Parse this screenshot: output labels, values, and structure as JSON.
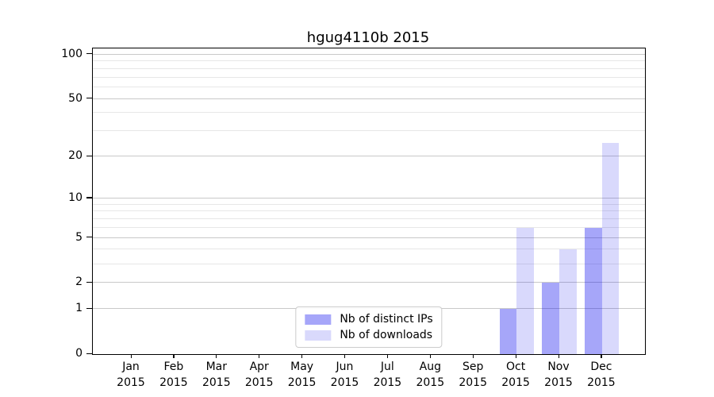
{
  "title": "hgug4110b 2015",
  "chart_data": {
    "type": "bar",
    "title": "hgug4110b 2015",
    "categories": [
      "Jan",
      "Feb",
      "Mar",
      "Apr",
      "May",
      "Jun",
      "Jul",
      "Aug",
      "Sep",
      "Oct",
      "Nov",
      "Dec"
    ],
    "x_year_label": "2015",
    "series": [
      {
        "name": "Nb of distinct IPs",
        "color": "rgba(0,0,238,0.35)",
        "values": [
          0,
          0,
          0,
          0,
          0,
          0,
          0,
          0,
          0,
          1,
          2,
          6
        ]
      },
      {
        "name": "Nb of downloads",
        "color": "rgba(0,0,238,0.15)",
        "values": [
          0,
          0,
          0,
          0,
          0,
          0,
          0,
          0,
          0,
          6,
          4,
          25
        ]
      }
    ],
    "y_scale": "log1p",
    "y_max": 110,
    "y_ticks": [
      0,
      1,
      2,
      5,
      10,
      20,
      50,
      100
    ],
    "y_minor_gridlines": [
      3,
      4,
      6,
      7,
      8,
      9,
      30,
      40,
      60,
      70,
      80,
      90
    ],
    "grid": true,
    "legend_position": "lower center",
    "xlabel": "",
    "ylabel": ""
  },
  "colors": {
    "background": "#ffffff",
    "axis": "#000000",
    "major_grid": "#c9c9c9",
    "minor_grid": "#e7e7e7",
    "bar_distinct_ips": "rgba(0,0,238,0.35)",
    "bar_downloads": "rgba(0,0,238,0.15)"
  }
}
